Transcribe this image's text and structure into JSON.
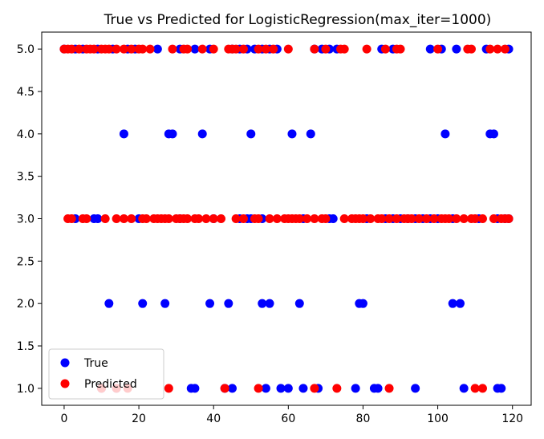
{
  "chart_data": {
    "type": "scatter",
    "title": "True vs Predicted for LogisticRegression(max_iter=1000)",
    "xlabel": "",
    "ylabel": "",
    "xlim": [
      -6,
      125
    ],
    "ylim": [
      0.8,
      5.2
    ],
    "xticks": [
      0,
      20,
      40,
      60,
      80,
      100,
      120
    ],
    "xtick_labels": [
      "0",
      "20",
      "40",
      "60",
      "80",
      "100",
      "120"
    ],
    "yticks": [
      1.0,
      1.5,
      2.0,
      2.5,
      3.0,
      3.5,
      4.0,
      4.5,
      5.0
    ],
    "ytick_labels": [
      "1.0",
      "1.5",
      "2.0",
      "2.5",
      "3.0",
      "3.5",
      "4.0",
      "4.5",
      "5.0"
    ],
    "grid": false,
    "legend": {
      "position": "lower-left"
    },
    "series": [
      {
        "name": "True",
        "color": "#0000ff",
        "points": [
          [
            0,
            5
          ],
          [
            3,
            5
          ],
          [
            5,
            5
          ],
          [
            9,
            5
          ],
          [
            13,
            5
          ],
          [
            17,
            5
          ],
          [
            19,
            5
          ],
          [
            25,
            5
          ],
          [
            31,
            5
          ],
          [
            35,
            5
          ],
          [
            39,
            5
          ],
          [
            45,
            5
          ],
          [
            47,
            5
          ],
          [
            49,
            5
          ],
          [
            51,
            5
          ],
          [
            53,
            5
          ],
          [
            55,
            5
          ],
          [
            57,
            5
          ],
          [
            67,
            5
          ],
          [
            69,
            5
          ],
          [
            71,
            5
          ],
          [
            73,
            5
          ],
          [
            85,
            5
          ],
          [
            88,
            5
          ],
          [
            98,
            5
          ],
          [
            101,
            5
          ],
          [
            105,
            5
          ],
          [
            113,
            5
          ],
          [
            119,
            5
          ],
          [
            16,
            4
          ],
          [
            28,
            4
          ],
          [
            29,
            4
          ],
          [
            37,
            4
          ],
          [
            50,
            4
          ],
          [
            61,
            4
          ],
          [
            66,
            4
          ],
          [
            102,
            4
          ],
          [
            114,
            4
          ],
          [
            115,
            4
          ],
          [
            3,
            3
          ],
          [
            8,
            3
          ],
          [
            9,
            3
          ],
          [
            20,
            3
          ],
          [
            31,
            3
          ],
          [
            40,
            3
          ],
          [
            47,
            3
          ],
          [
            49,
            3
          ],
          [
            50,
            3
          ],
          [
            53,
            3
          ],
          [
            64,
            3
          ],
          [
            71,
            3
          ],
          [
            72,
            3
          ],
          [
            81,
            3
          ],
          [
            86,
            3
          ],
          [
            88,
            3
          ],
          [
            90,
            3
          ],
          [
            92,
            3
          ],
          [
            94,
            3
          ],
          [
            96,
            3
          ],
          [
            98,
            3
          ],
          [
            100,
            3
          ],
          [
            104,
            3
          ],
          [
            111,
            3
          ],
          [
            116,
            3
          ],
          [
            118,
            3
          ],
          [
            119,
            3
          ],
          [
            12,
            2
          ],
          [
            21,
            2
          ],
          [
            27,
            2
          ],
          [
            39,
            2
          ],
          [
            44,
            2
          ],
          [
            53,
            2
          ],
          [
            55,
            2
          ],
          [
            63,
            2
          ],
          [
            79,
            2
          ],
          [
            80,
            2
          ],
          [
            104,
            2
          ],
          [
            106,
            2
          ],
          [
            10,
            1
          ],
          [
            14,
            1
          ],
          [
            34,
            1
          ],
          [
            35,
            1
          ],
          [
            43,
            1
          ],
          [
            45,
            1
          ],
          [
            54,
            1
          ],
          [
            58,
            1
          ],
          [
            60,
            1
          ],
          [
            64,
            1
          ],
          [
            68,
            1
          ],
          [
            78,
            1
          ],
          [
            83,
            1
          ],
          [
            84,
            1
          ],
          [
            94,
            1
          ],
          [
            107,
            1
          ],
          [
            116,
            1
          ],
          [
            117,
            1
          ]
        ]
      },
      {
        "name": "Predicted",
        "color": "#ff0000",
        "points": [
          [
            0,
            5
          ],
          [
            1,
            5
          ],
          [
            2,
            5
          ],
          [
            4,
            5
          ],
          [
            6,
            5
          ],
          [
            7,
            5
          ],
          [
            8,
            5
          ],
          [
            10,
            5
          ],
          [
            11,
            5
          ],
          [
            12,
            5
          ],
          [
            14,
            5
          ],
          [
            16,
            5
          ],
          [
            18,
            5
          ],
          [
            20,
            5
          ],
          [
            21,
            5
          ],
          [
            23,
            5
          ],
          [
            29,
            5
          ],
          [
            32,
            5
          ],
          [
            33,
            5
          ],
          [
            37,
            5
          ],
          [
            40,
            5
          ],
          [
            44,
            5
          ],
          [
            45,
            5
          ],
          [
            46,
            5
          ],
          [
            48,
            5
          ],
          [
            52,
            5
          ],
          [
            54,
            5
          ],
          [
            56,
            5
          ],
          [
            60,
            5
          ],
          [
            67,
            5
          ],
          [
            70,
            5
          ],
          [
            74,
            5
          ],
          [
            75,
            5
          ],
          [
            81,
            5
          ],
          [
            86,
            5
          ],
          [
            89,
            5
          ],
          [
            90,
            5
          ],
          [
            100,
            5
          ],
          [
            108,
            5
          ],
          [
            109,
            5
          ],
          [
            114,
            5
          ],
          [
            116,
            5
          ],
          [
            118,
            5
          ],
          [
            1,
            3
          ],
          [
            2,
            3
          ],
          [
            5,
            3
          ],
          [
            6,
            3
          ],
          [
            11,
            3
          ],
          [
            14,
            3
          ],
          [
            16,
            3
          ],
          [
            18,
            3
          ],
          [
            21,
            3
          ],
          [
            22,
            3
          ],
          [
            24,
            3
          ],
          [
            25,
            3
          ],
          [
            26,
            3
          ],
          [
            27,
            3
          ],
          [
            28,
            3
          ],
          [
            30,
            3
          ],
          [
            31,
            3
          ],
          [
            32,
            3
          ],
          [
            33,
            3
          ],
          [
            35,
            3
          ],
          [
            36,
            3
          ],
          [
            38,
            3
          ],
          [
            40,
            3
          ],
          [
            42,
            3
          ],
          [
            46,
            3
          ],
          [
            48,
            3
          ],
          [
            51,
            3
          ],
          [
            52,
            3
          ],
          [
            55,
            3
          ],
          [
            57,
            3
          ],
          [
            59,
            3
          ],
          [
            60,
            3
          ],
          [
            61,
            3
          ],
          [
            62,
            3
          ],
          [
            63,
            3
          ],
          [
            65,
            3
          ],
          [
            67,
            3
          ],
          [
            69,
            3
          ],
          [
            70,
            3
          ],
          [
            75,
            3
          ],
          [
            77,
            3
          ],
          [
            78,
            3
          ],
          [
            79,
            3
          ],
          [
            80,
            3
          ],
          [
            82,
            3
          ],
          [
            84,
            3
          ],
          [
            85,
            3
          ],
          [
            87,
            3
          ],
          [
            89,
            3
          ],
          [
            91,
            3
          ],
          [
            92,
            3
          ],
          [
            93,
            3
          ],
          [
            95,
            3
          ],
          [
            97,
            3
          ],
          [
            99,
            3
          ],
          [
            101,
            3
          ],
          [
            102,
            3
          ],
          [
            103,
            3
          ],
          [
            105,
            3
          ],
          [
            107,
            3
          ],
          [
            109,
            3
          ],
          [
            110,
            3
          ],
          [
            112,
            3
          ],
          [
            115,
            3
          ],
          [
            117,
            3
          ],
          [
            118,
            3
          ],
          [
            119,
            3
          ],
          [
            10,
            1
          ],
          [
            14,
            1
          ],
          [
            17,
            1
          ],
          [
            28,
            1
          ],
          [
            43,
            1
          ],
          [
            52,
            1
          ],
          [
            67,
            1
          ],
          [
            73,
            1
          ],
          [
            87,
            1
          ],
          [
            110,
            1
          ],
          [
            112,
            1
          ]
        ]
      }
    ]
  }
}
